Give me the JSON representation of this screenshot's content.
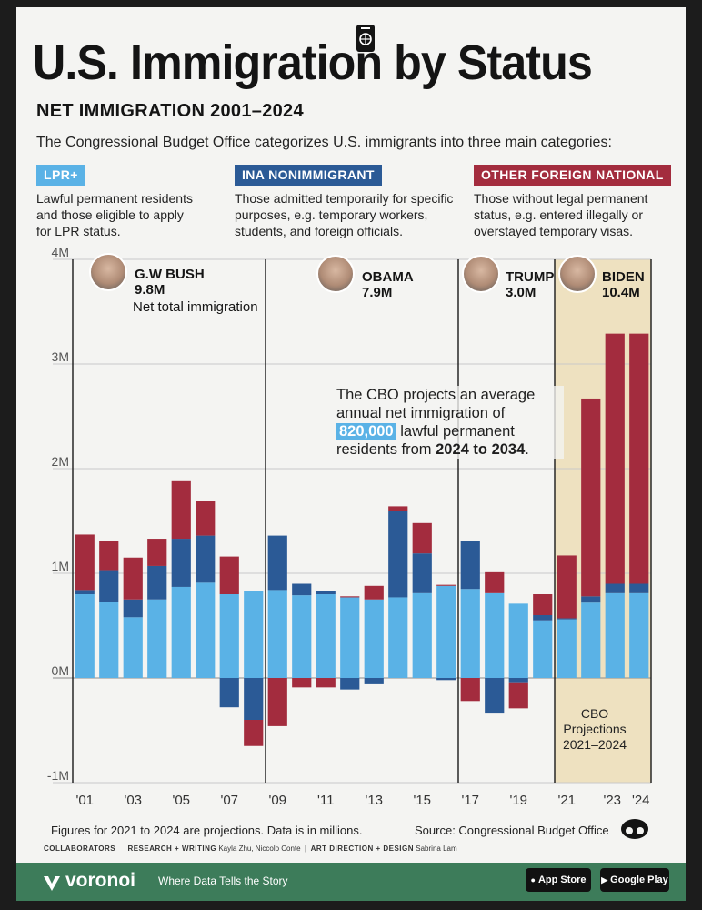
{
  "header": {
    "title": "U.S. Immigration by Status",
    "subtitle": "NET IMMIGRATION 2001–2024",
    "intro": "The Congressional Budget Office categorizes U.S. immigrants into three main categories:"
  },
  "categories_info": [
    {
      "label": "LPR+",
      "color": "#5ab2e6",
      "description": [
        "Lawful permanent residents",
        "and those eligible to apply",
        "for LPR status."
      ]
    },
    {
      "label": "INA NONIMMIGRANT",
      "color": "#2b5a96",
      "description": [
        "Those admitted temporarily for specific",
        "purposes, e.g. temporary workers,",
        "students, and foreign officials."
      ]
    },
    {
      "label": "OTHER FOREIGN NATIONAL",
      "color": "#a32c3e",
      "description": [
        "Those without legal permanent",
        "status, e.g. entered illegally or",
        "overstayed temporary visas."
      ]
    }
  ],
  "presidents": [
    {
      "name": "G.W BUSH",
      "total": "9.8M"
    },
    {
      "name": "OBAMA",
      "total": "7.9M"
    },
    {
      "name": "TRUMP",
      "total": "3.0M"
    },
    {
      "name": "BIDEN",
      "total": "10.4M"
    }
  ],
  "net_total_label": "Net total immigration",
  "cbo_note": {
    "line1": "The CBO projects an average",
    "line2": "annual net immigration of",
    "highlight": "820,000",
    "line3_rest": " lawful permanent",
    "line4_pre": "residents from ",
    "line4_bold": "2024 to 2034",
    "line4_post": "."
  },
  "projection_label": [
    "CBO",
    "Projections",
    "2021–2024"
  ],
  "footer": {
    "footnote": "Figures for 2021 to 2024 are projections. Data is in millions.",
    "source": "Source: Congressional Budget Office",
    "collaborators_label": "COLLABORATORS",
    "research_label": "RESEARCH + WRITING",
    "research_names": "Kayla Zhu, Niccolo Conte",
    "design_label": "ART DIRECTION + DESIGN",
    "design_names": "Sabrina Lam",
    "brand": "voronoi",
    "tagline": "Where Data Tells the Story",
    "app_store": "App Store",
    "google_play": "Google Play"
  },
  "chart_data": {
    "type": "bar",
    "stacked": true,
    "title": "U.S. Immigration by Status",
    "subtitle": "NET IMMIGRATION 2001–2024",
    "years": [
      2001,
      2002,
      2003,
      2004,
      2005,
      2006,
      2007,
      2008,
      2009,
      2010,
      2011,
      2012,
      2013,
      2014,
      2015,
      2016,
      2017,
      2018,
      2019,
      2020,
      2021,
      2022,
      2023,
      2024
    ],
    "x_tick_labels": [
      "'01",
      "'03",
      "'05",
      "'07",
      "'09",
      "'11",
      "'13",
      "'15",
      "'17",
      "'19",
      "'21",
      "'23",
      "'24"
    ],
    "x_tick_years": [
      2001,
      2003,
      2005,
      2007,
      2009,
      2011,
      2013,
      2015,
      2017,
      2019,
      2021,
      2023,
      2024
    ],
    "y_tick_labels": [
      "4M",
      "3M",
      "2M",
      "1M",
      "0M",
      "-1M"
    ],
    "y_tick_values": [
      4,
      3,
      2,
      1,
      0,
      -1
    ],
    "ylim": [
      -1,
      4
    ],
    "unit": "millions",
    "series": [
      {
        "name": "LPR+",
        "color": "#5ab2e6",
        "values": [
          0.8,
          0.73,
          0.58,
          0.75,
          0.87,
          0.91,
          0.8,
          0.83,
          0.84,
          0.79,
          0.8,
          0.77,
          0.75,
          0.77,
          0.81,
          0.88,
          0.85,
          0.81,
          0.71,
          0.55,
          0.56,
          0.72,
          0.81,
          0.81
        ]
      },
      {
        "name": "INA NONIMMIGRANT",
        "color": "#2b5a96",
        "values": [
          0.04,
          0.3,
          0.17,
          0.32,
          0.46,
          0.45,
          -0.28,
          -0.4,
          0.52,
          0.11,
          0.03,
          -0.11,
          -0.06,
          0.83,
          0.38,
          -0.02,
          0.46,
          -0.34,
          -0.05,
          0.05,
          0.01,
          0.06,
          0.09,
          0.09
        ]
      },
      {
        "name": "OTHER FOREIGN NATIONAL",
        "color": "#a32c3e",
        "values": [
          0.53,
          0.28,
          0.4,
          0.26,
          0.55,
          0.33,
          0.36,
          -0.25,
          -0.46,
          -0.09,
          -0.09,
          0.01,
          0.13,
          0.04,
          0.29,
          0.01,
          -0.22,
          0.2,
          -0.24,
          0.2,
          0.6,
          1.89,
          2.39,
          2.39
        ]
      }
    ],
    "annotations": [
      "Net total immigration",
      "CBO Projections 2021–2024"
    ],
    "projection_years": [
      2021,
      2024
    ]
  }
}
